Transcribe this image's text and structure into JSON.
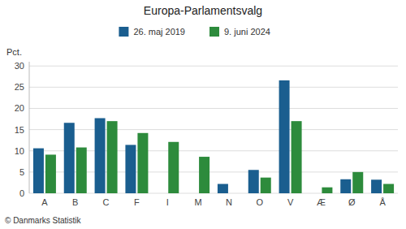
{
  "chart_data": {
    "type": "bar",
    "title": "Europa-Parlamentsvalg",
    "categories": [
      "A",
      "B",
      "C",
      "F",
      "I",
      "M",
      "N",
      "O",
      "V",
      "Æ",
      "Ø",
      "Å"
    ],
    "series": [
      {
        "name": "26. maj 2019",
        "color": "#1a5e8f",
        "values": [
          10.6,
          16.6,
          17.7,
          11.4,
          0,
          0,
          2.2,
          5.5,
          26.6,
          0,
          3.3,
          3.2
        ]
      },
      {
        "name": "9. juni 2024",
        "color": "#2d8b3c",
        "values": [
          9.1,
          10.8,
          17.0,
          14.2,
          12.1,
          8.6,
          0,
          3.7,
          17.0,
          1.4,
          5.0,
          2.2
        ]
      }
    ],
    "ylabel": "Pct.",
    "ylim": [
      0,
      31
    ],
    "yticks": [
      0,
      5,
      10,
      15,
      20,
      25,
      30
    ],
    "grid": true,
    "legend": "top",
    "footer": "© Danmarks Statistik"
  }
}
